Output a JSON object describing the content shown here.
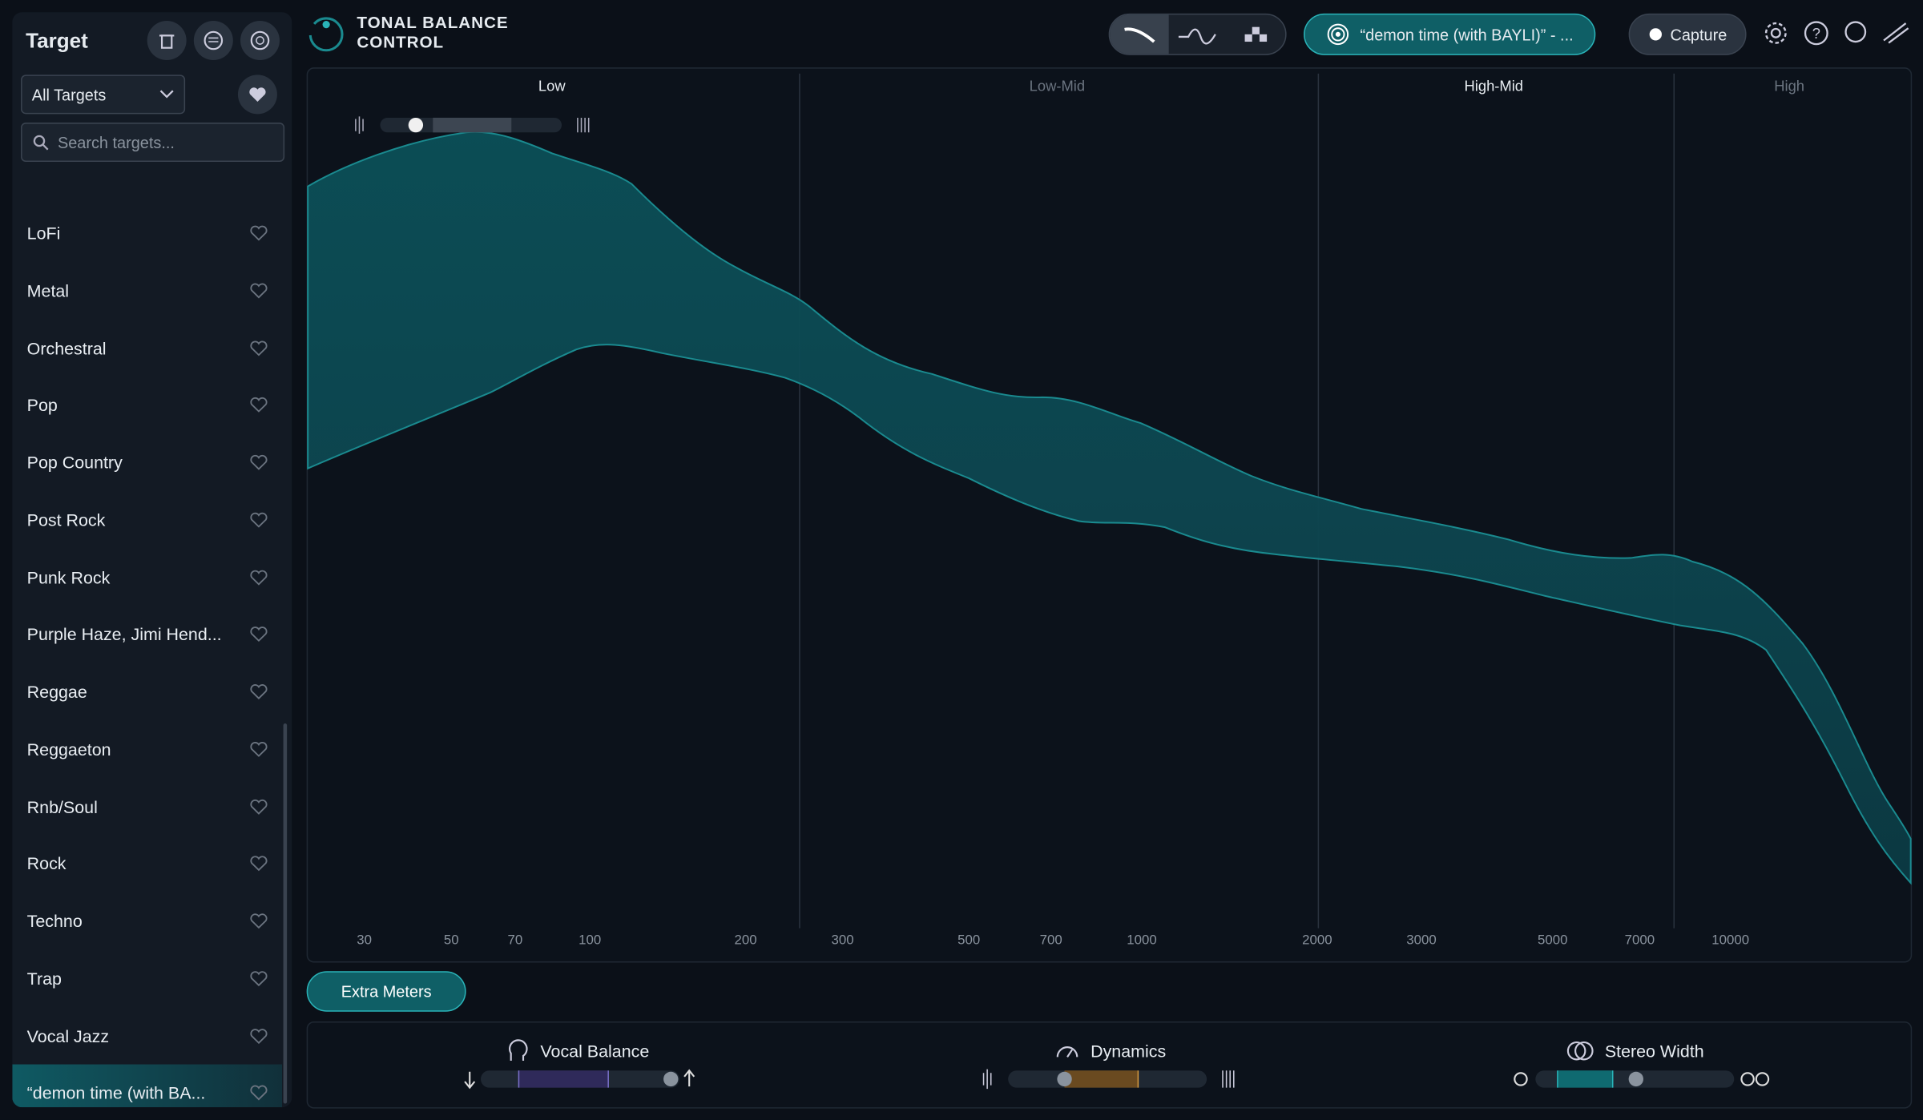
{
  "sidebar": {
    "title": "Target",
    "filter": "All Targets",
    "search_placeholder": "Search targets...",
    "items": [
      "LoFi",
      "Metal",
      "Orchestral",
      "Pop",
      "Pop Country",
      "Post Rock",
      "Punk Rock",
      "Purple Haze, Jimi Hend...",
      "Reggae",
      "Reggaeton",
      "Rnb/Soul",
      "Rock",
      "Techno",
      "Trap",
      "Vocal Jazz",
      "“demon time (with BA..."
    ],
    "selected": 15
  },
  "header": {
    "app_title": [
      "TONAL BALANCE",
      "CONTROL"
    ],
    "target_button": "“demon time (with BAYLI)” - ...",
    "capture": "Capture"
  },
  "chart": {
    "bands": [
      "Low",
      "Low-Mid",
      "High-Mid",
      "High"
    ],
    "frequency_labels": [
      30,
      50,
      70,
      100,
      200,
      300,
      500,
      700,
      1000,
      2000,
      3000,
      5000,
      7000,
      10000
    ]
  },
  "footer": {
    "extra_meters": "Extra Meters",
    "meters": [
      "Vocal Balance",
      "Dynamics",
      "Stereo Width"
    ]
  }
}
